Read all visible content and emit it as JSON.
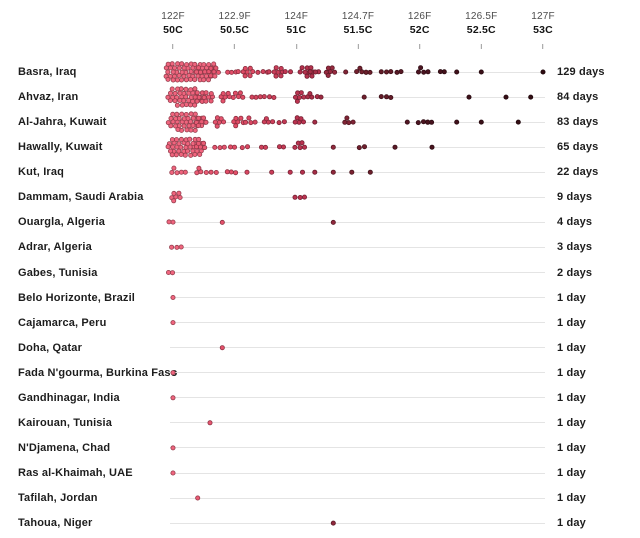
{
  "chart_data": {
    "type": "scatter",
    "variant": "beeswarm-dot-strip",
    "title": "",
    "grid": "off",
    "legend_position": "none",
    "track_color": "#e4e4e4",
    "dot_color_stops": [
      [
        50.0,
        "#f0657e"
      ],
      [
        50.5,
        "#e14c66"
      ],
      [
        51.0,
        "#bb3350"
      ],
      [
        51.5,
        "#73202e"
      ],
      [
        52.0,
        "#4b1420"
      ],
      [
        52.5,
        "#3a0f17"
      ],
      [
        53.0,
        "#2f0b11"
      ]
    ],
    "x_axis": {
      "min_c": 50,
      "max_c": 53,
      "ticks": [
        {
          "f": "122F",
          "c": "50C",
          "value": 50
        },
        {
          "f": "122.9F",
          "c": "50.5C",
          "value": 50.5
        },
        {
          "f": "124F",
          "c": "51C",
          "value": 51
        },
        {
          "f": "124.7F",
          "c": "51.5C",
          "value": 51.5
        },
        {
          "f": "126F",
          "c": "52C",
          "value": 52
        },
        {
          "f": "126.5F",
          "c": "52.5C",
          "value": 52.5
        },
        {
          "f": "127F",
          "c": "53C",
          "value": 53
        }
      ]
    },
    "rows": [
      {
        "city": "Basra, Iraq",
        "days": 129,
        "days_label": "129 days",
        "clusters": [
          [
            50.0,
            56
          ],
          [
            50.2,
            4
          ],
          [
            50.3,
            6
          ],
          [
            50.45,
            3
          ],
          [
            50.55,
            8
          ],
          [
            50.7,
            3
          ],
          [
            50.8,
            8
          ],
          [
            50.95,
            2
          ],
          [
            51.05,
            10
          ],
          [
            51.15,
            2
          ],
          [
            51.25,
            6
          ],
          [
            51.4,
            1
          ],
          [
            51.5,
            4
          ],
          [
            51.6,
            2
          ],
          [
            51.7,
            3
          ],
          [
            51.85,
            2
          ],
          [
            52.0,
            4
          ],
          [
            52.2,
            2
          ],
          [
            52.3,
            1
          ],
          [
            52.5,
            1
          ],
          [
            53.0,
            1
          ]
        ]
      },
      {
        "city": "Ahvaz, Iran",
        "days": 84,
        "days_label": "84 days",
        "clusters": [
          [
            50.0,
            36
          ],
          [
            50.2,
            13
          ],
          [
            50.4,
            6
          ],
          [
            50.5,
            5
          ],
          [
            50.65,
            3
          ],
          [
            50.75,
            3
          ],
          [
            51.0,
            6
          ],
          [
            51.1,
            4
          ],
          [
            51.2,
            1
          ],
          [
            51.55,
            1
          ],
          [
            51.7,
            3
          ],
          [
            52.4,
            1
          ],
          [
            52.7,
            1
          ],
          [
            52.9,
            1
          ]
        ]
      },
      {
        "city": "Al-Jahra, Kuwait",
        "days": 83,
        "days_label": "83 days",
        "clusters": [
          [
            50.0,
            36
          ],
          [
            50.2,
            6
          ],
          [
            50.35,
            6
          ],
          [
            50.5,
            6
          ],
          [
            50.6,
            4
          ],
          [
            50.75,
            4
          ],
          [
            50.9,
            2
          ],
          [
            51.0,
            5
          ],
          [
            51.15,
            1
          ],
          [
            51.4,
            4
          ],
          [
            51.9,
            1
          ],
          [
            52.0,
            3
          ],
          [
            52.1,
            2
          ],
          [
            52.3,
            1
          ],
          [
            52.5,
            1
          ],
          [
            52.8,
            1
          ]
        ]
      },
      {
        "city": "Hawally, Kuwait",
        "days": 65,
        "days_label": "65 days",
        "clusters": [
          [
            50.0,
            39
          ],
          [
            50.2,
            5
          ],
          [
            50.35,
            3
          ],
          [
            50.5,
            2
          ],
          [
            50.6,
            2
          ],
          [
            50.75,
            2
          ],
          [
            50.9,
            2
          ],
          [
            51.0,
            5
          ],
          [
            51.3,
            1
          ],
          [
            51.55,
            2
          ],
          [
            51.8,
            1
          ],
          [
            52.1,
            1
          ]
        ]
      },
      {
        "city": "Kut, Iraq",
        "days": 22,
        "days_label": "22 days",
        "clusters": [
          [
            50.0,
            4
          ],
          [
            50.1,
            1
          ],
          [
            50.2,
            4
          ],
          [
            50.35,
            2
          ],
          [
            50.45,
            3
          ],
          [
            50.6,
            1
          ],
          [
            50.8,
            1
          ],
          [
            50.95,
            1
          ],
          [
            51.05,
            1
          ],
          [
            51.15,
            1
          ],
          [
            51.3,
            1
          ],
          [
            51.45,
            1
          ],
          [
            51.6,
            1
          ]
        ]
      },
      {
        "city": "Dammam, Saudi Arabia",
        "days": 9,
        "days_label": "9 days",
        "clusters": [
          [
            50.0,
            6
          ],
          [
            51.0,
            3
          ]
        ]
      },
      {
        "city": "Ouargla, Algeria",
        "days": 4,
        "days_label": "4 days",
        "clusters": [
          [
            50.0,
            2
          ],
          [
            50.4,
            1
          ],
          [
            51.3,
            1
          ]
        ]
      },
      {
        "city": "Adrar, Algeria",
        "days": 3,
        "days_label": "3 days",
        "clusters": [
          [
            50.0,
            3
          ]
        ]
      },
      {
        "city": "Gabes, Tunisia",
        "days": 2,
        "days_label": "2 days",
        "clusters": [
          [
            50.0,
            2
          ]
        ]
      },
      {
        "city": "Belo Horizonte, Brazil",
        "days": 1,
        "days_label": "1 day",
        "clusters": [
          [
            50.0,
            1
          ]
        ]
      },
      {
        "city": "Cajamarca, Peru",
        "days": 1,
        "days_label": "1 day",
        "clusters": [
          [
            50.0,
            1
          ]
        ]
      },
      {
        "city": "Doha, Qatar",
        "days": 1,
        "days_label": "1 day",
        "clusters": [
          [
            50.4,
            1
          ]
        ]
      },
      {
        "city": "Fada N'gourma, Burkina Faso",
        "days": 1,
        "days_label": "1 day",
        "clusters": [
          [
            50.0,
            1
          ]
        ]
      },
      {
        "city": "Gandhinagar, India",
        "days": 1,
        "days_label": "1 day",
        "clusters": [
          [
            50.0,
            1
          ]
        ]
      },
      {
        "city": "Kairouan, Tunisia",
        "days": 1,
        "days_label": "1 day",
        "clusters": [
          [
            50.3,
            1
          ]
        ]
      },
      {
        "city": "N'Djamena, Chad",
        "days": 1,
        "days_label": "1 day",
        "clusters": [
          [
            50.0,
            1
          ]
        ]
      },
      {
        "city": "Ras al-Khaimah, UAE",
        "days": 1,
        "days_label": "1 day",
        "clusters": [
          [
            50.0,
            1
          ]
        ]
      },
      {
        "city": "Tafilah, Jordan",
        "days": 1,
        "days_label": "1 day",
        "clusters": [
          [
            50.2,
            1
          ]
        ]
      },
      {
        "city": "Tahoua, Niger",
        "days": 1,
        "days_label": "1 day",
        "clusters": [
          [
            51.3,
            1
          ]
        ]
      }
    ]
  }
}
